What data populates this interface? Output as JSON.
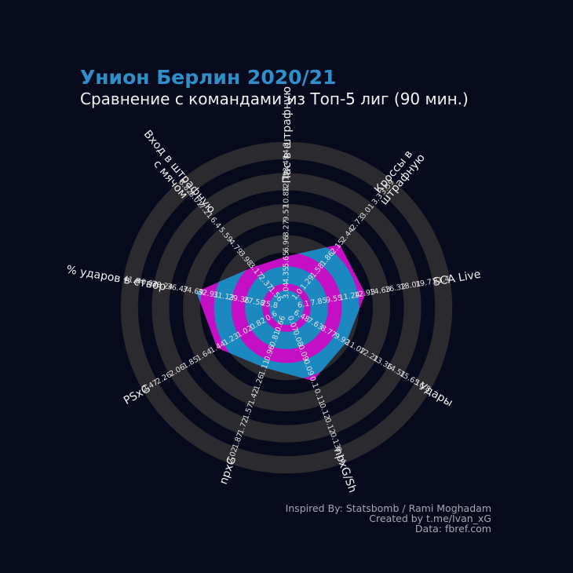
{
  "title": "Унион Берлин 2020/21",
  "subtitle": "Сравнение с командами из Топ-5 лиг (90 мин.)",
  "credits": {
    "line1": "Inspired By: Statsbomb / Rami Moghadam",
    "line2": "Created by t.me/Ivan_xG",
    "line3": "Data: fbref.com"
  },
  "colors": {
    "background": "#070a1c",
    "ring": "#2b2b2f",
    "team_fill": "#c40fc4",
    "highlight": "#1b88c0",
    "title": "#2f8fca"
  },
  "chart_data": {
    "type": "radar",
    "title": "Унион Берлин 2020/21",
    "subtitle": "Сравнение с командами из Топ-5 лиг (90 мин.)",
    "grid": true,
    "axes": [
      {
        "label": "Пас в штрафную",
        "ticks": [
          "3.04",
          "4.35",
          "5.65",
          "6.96",
          "8.27",
          "9.57",
          "10.88",
          "12.19",
          "13.49",
          "14.8"
        ],
        "value": 5.9
      },
      {
        "label": "Кроссы в штрафную",
        "ticks": [
          "1.0",
          "1.29",
          "1.58",
          "1.86",
          "2.15",
          "2.44",
          "2.73",
          "3.01",
          "3.3",
          "3.59"
        ],
        "value": 2.21
      },
      {
        "label": "SCA Live",
        "ticks": [
          "6.1",
          "7.85",
          "9.55",
          "11.24",
          "12.93",
          "14.63",
          "16.32",
          "18.01",
          "19.71",
          "21.4"
        ],
        "value": 13.0
      },
      {
        "label": "Удары",
        "ticks": [
          "6.48",
          "7.63",
          "8.77",
          "9.92",
          "11.07",
          "12.21",
          "13.36",
          "14.51",
          "15.65",
          "16.8"
        ],
        "value": 10.3
      },
      {
        "label": "npxG/Sh",
        "ticks": [
          "0.07",
          "0.08",
          "0.09",
          "0.09",
          "0.1",
          "0.11",
          "0.12",
          "0.12",
          "0.13",
          "0.14"
        ],
        "value": 0.099
      },
      {
        "label": "npxG",
        "ticks": [
          "0.66",
          "0.81",
          "0.96",
          "1.11",
          "1.26",
          "1.42",
          "1.57",
          "1.72",
          "1.87",
          "2.02"
        ],
        "value": 1.11
      },
      {
        "label": "PSxG",
        "ticks": [
          "0.6",
          "0.82",
          "1.02",
          "1.23",
          "1.44",
          "1.64",
          "1.85",
          "2.06",
          "2.26",
          "2.47"
        ],
        "value": 1.45
      },
      {
        "label": "% ударов в створ",
        "ticks": [
          "25.8",
          "27.58",
          "29.36",
          "31.13",
          "32.91",
          "34.69",
          "36.47",
          "38.24",
          "40.02",
          "41.8"
        ],
        "value": 34.3
      },
      {
        "label": "Вход в штрафную с мячом",
        "ticks": [
          "1.56",
          "2.37",
          "3.17",
          "3.98",
          "4.79",
          "5.59",
          "6.4",
          "7.21",
          "8.01",
          "8.82"
        ],
        "value": 3.4
      }
    ]
  }
}
